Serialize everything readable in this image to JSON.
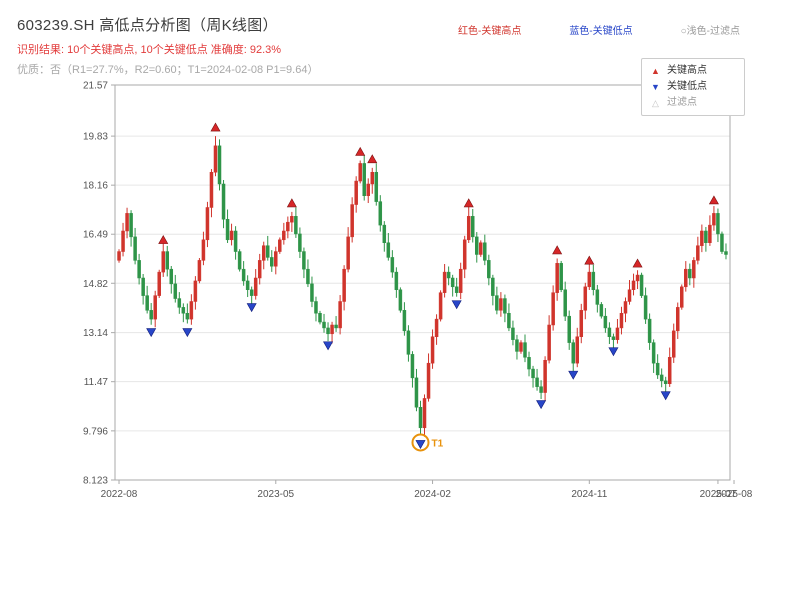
{
  "header": {
    "title": "603239.SH 高低点分析图（周K线图）",
    "result_line": "识别结果: 10个关键高点, 10个关键低点  准确度: 92.3%",
    "quality_line": "优质：否（R1=27.7%，R2=0.60；T1=2024-02-08 P1=9.64）",
    "legend_inline": [
      {
        "label": "红色-关键高点",
        "color": "#d0342c"
      },
      {
        "label": "蓝色-关键低点",
        "color": "#2846c8"
      },
      {
        "label": "○浅色-过滤点",
        "color": "#999999"
      }
    ]
  },
  "legend_box": {
    "items": [
      {
        "glyph": "▲",
        "label": "关键高点"
      },
      {
        "glyph": "▼",
        "label": "关键低点"
      },
      {
        "glyph": "△",
        "label": "过滤点"
      }
    ]
  },
  "chart_data": {
    "type": "candlestick",
    "title": "603239.SH 高低点分析图（周K线图）",
    "timeframe": "weekly",
    "symbol": "603239.SH",
    "ylim": [
      8.123,
      21.57
    ],
    "yticks": [
      21.57,
      19.83,
      18.16,
      16.49,
      14.82,
      13.14,
      11.47,
      9.796,
      8.123
    ],
    "xticks": [
      {
        "index": 0,
        "label": "2022-08"
      },
      {
        "index": 39,
        "label": "2023-05"
      },
      {
        "index": 78,
        "label": "2024-02"
      },
      {
        "index": 117,
        "label": "2024-11"
      },
      {
        "index": 149,
        "label": "2025-07"
      },
      {
        "index": 153,
        "label": "2025-08"
      }
    ],
    "first_open": 15.6,
    "closes": [
      15.9,
      16.6,
      17.2,
      16.4,
      15.6,
      15.0,
      14.4,
      13.9,
      13.6,
      14.4,
      15.2,
      15.9,
      15.3,
      14.8,
      14.3,
      14.0,
      13.8,
      13.6,
      14.2,
      14.9,
      15.6,
      16.3,
      17.4,
      18.6,
      19.5,
      18.2,
      17.0,
      16.3,
      16.6,
      15.9,
      15.3,
      14.9,
      14.6,
      14.4,
      15.0,
      15.6,
      16.1,
      15.7,
      15.4,
      15.9,
      16.3,
      16.6,
      16.9,
      17.1,
      16.5,
      15.9,
      15.3,
      14.8,
      14.2,
      13.8,
      13.5,
      13.3,
      13.1,
      13.4,
      13.3,
      14.2,
      15.3,
      16.4,
      17.5,
      18.3,
      18.9,
      17.8,
      18.2,
      18.6,
      17.6,
      16.8,
      16.2,
      15.7,
      15.2,
      14.6,
      13.9,
      13.2,
      12.4,
      11.6,
      10.6,
      9.9,
      10.9,
      12.1,
      13.0,
      13.6,
      14.5,
      15.2,
      15.0,
      14.7,
      14.5,
      15.3,
      16.3,
      17.1,
      16.4,
      15.8,
      16.2,
      15.6,
      15.0,
      14.4,
      13.9,
      14.3,
      13.8,
      13.3,
      12.9,
      12.5,
      12.8,
      12.3,
      11.9,
      11.6,
      11.3,
      11.1,
      12.2,
      13.4,
      14.5,
      15.5,
      14.6,
      13.7,
      12.8,
      12.1,
      13.0,
      13.9,
      14.7,
      15.2,
      14.6,
      14.1,
      13.7,
      13.3,
      13.0,
      12.9,
      13.3,
      13.8,
      14.2,
      14.6,
      14.9,
      15.1,
      14.4,
      13.6,
      12.8,
      12.1,
      11.7,
      11.5,
      11.4,
      12.3,
      13.2,
      14.0,
      14.7,
      15.3,
      15.0,
      15.6,
      16.1,
      16.6,
      16.2,
      16.8,
      17.2,
      16.5,
      15.9,
      15.8
    ],
    "key_highs": [
      {
        "index": 11,
        "price": 16.0
      },
      {
        "index": 24,
        "price": 19.83
      },
      {
        "index": 43,
        "price": 17.25
      },
      {
        "index": 60,
        "price": 19.0
      },
      {
        "index": 63,
        "price": 18.75
      },
      {
        "index": 87,
        "price": 17.25
      },
      {
        "index": 109,
        "price": 15.65
      },
      {
        "index": 117,
        "price": 15.3
      },
      {
        "index": 129,
        "price": 15.2
      },
      {
        "index": 148,
        "price": 17.35
      }
    ],
    "key_lows": [
      {
        "index": 8,
        "price": 13.45
      },
      {
        "index": 17,
        "price": 13.45
      },
      {
        "index": 33,
        "price": 14.3
      },
      {
        "index": 52,
        "price": 13.0
      },
      {
        "index": 75,
        "price": 9.64
      },
      {
        "index": 84,
        "price": 14.4
      },
      {
        "index": 105,
        "price": 11.0
      },
      {
        "index": 113,
        "price": 12.0
      },
      {
        "index": 123,
        "price": 12.8
      },
      {
        "index": 136,
        "price": 11.3
      }
    ],
    "annotation": {
      "label": "T1",
      "index": 75,
      "price": 9.64,
      "color": "#e8920c"
    },
    "colors": {
      "up": "#d0342c",
      "down": "#2e9448",
      "grid": "#e6e6e6",
      "axis": "#aaaaaa",
      "high_marker": "#d62728",
      "low_marker": "#2846c8"
    }
  }
}
